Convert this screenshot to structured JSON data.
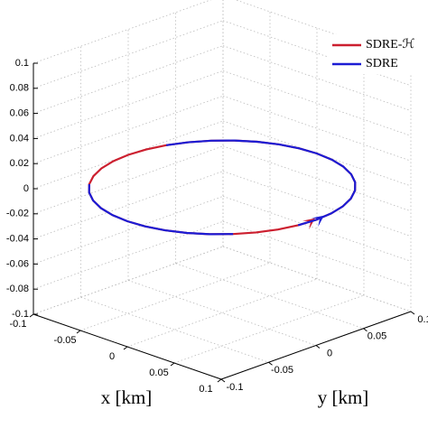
{
  "chart_data": {
    "type": "line3d",
    "xlabel": "x [km]",
    "ylabel": "y [km]",
    "xlim": [
      -0.1,
      0.1
    ],
    "ylim": [
      -0.1,
      0.1
    ],
    "zlim": [
      -0.1,
      0.1
    ],
    "xticks": [
      -0.1,
      -0.05,
      0,
      0.05,
      0.1
    ],
    "yticks": [
      -0.1,
      -0.05,
      0,
      0.05,
      0.1
    ],
    "zticks": [
      -0.1,
      -0.08,
      -0.06,
      -0.04,
      -0.02,
      0,
      0.02,
      0.04,
      0.06,
      0.08,
      0.1
    ],
    "grid": true,
    "legend": "upper right",
    "series": [
      {
        "name": "SDRE-ℋ",
        "color": "#cc1f2f",
        "x": [
          0.1,
          0.0985,
          0.094,
          0.0866,
          0.0766,
          0.0643,
          0.05,
          0.0342,
          0.0174,
          0,
          -0.0174,
          -0.0342,
          -0.05,
          -0.0643,
          -0.0766,
          -0.0866,
          -0.094,
          -0.0985,
          -0.1,
          -0.0985,
          -0.094,
          -0.0866,
          -0.0766,
          -0.0643,
          -0.05,
          -0.0342,
          -0.0174,
          0,
          0.0174,
          0.0342,
          0.05,
          0.0643,
          0.0766,
          0.0866,
          0.094,
          0.0985,
          0.1
        ],
        "y": [
          0,
          0.0174,
          0.0342,
          0.05,
          0.0643,
          0.0766,
          0.0866,
          0.094,
          0.0985,
          0.1,
          0.0985,
          0.094,
          0.0866,
          0.0766,
          0.0643,
          0.05,
          0.0342,
          0.0174,
          0,
          -0.0174,
          -0.0342,
          -0.05,
          -0.0643,
          -0.0766,
          -0.0866,
          -0.094,
          -0.0985,
          -0.1,
          -0.0985,
          -0.094,
          -0.0866,
          -0.0766,
          -0.0643,
          -0.05,
          -0.0342,
          -0.0174,
          0
        ],
        "z": [
          0,
          0,
          0,
          0,
          0,
          0,
          0,
          0,
          0,
          0,
          0,
          0,
          0,
          0,
          0,
          0,
          0,
          0,
          0,
          0,
          0,
          0,
          0,
          0,
          0,
          0,
          0,
          0,
          0,
          0,
          0,
          0,
          0,
          0,
          0,
          0,
          0
        ]
      },
      {
        "name": "SDRE",
        "color": "#1c1cd4",
        "x": [
          0.1,
          0.0985,
          0.094,
          0.0866,
          0.0766,
          0.0643,
          0.05,
          0.0342,
          0.0174,
          0,
          -0.0174,
          -0.0342,
          -0.05,
          -0.0643,
          -0.0766,
          -0.0866,
          -0.094,
          null,
          null,
          null,
          null,
          null,
          -0.0766,
          -0.0643,
          -0.05,
          -0.0342,
          -0.0174,
          0,
          0.0174,
          0.0342,
          0.05,
          0.0643,
          0.0766,
          null,
          null,
          0.0985,
          0.1
        ],
        "y": [
          0,
          0.0174,
          0.0342,
          0.05,
          0.0643,
          0.0766,
          0.0866,
          0.094,
          0.0985,
          0.1,
          0.0985,
          0.094,
          0.0866,
          0.0766,
          0.0643,
          0.05,
          0.0342,
          null,
          null,
          null,
          null,
          null,
          -0.0643,
          -0.0766,
          -0.0866,
          -0.094,
          -0.0985,
          -0.1,
          -0.0985,
          -0.094,
          -0.0866,
          -0.0766,
          -0.0643,
          null,
          null,
          -0.0174,
          0
        ],
        "z": [
          0,
          0,
          0,
          0,
          0,
          0,
          0,
          0,
          0,
          0,
          0,
          0,
          0,
          0,
          0,
          0,
          0,
          null,
          null,
          null,
          null,
          null,
          0,
          0,
          0,
          0,
          0,
          0,
          0,
          0,
          0,
          0,
          0,
          null,
          null,
          0,
          0
        ]
      }
    ]
  }
}
